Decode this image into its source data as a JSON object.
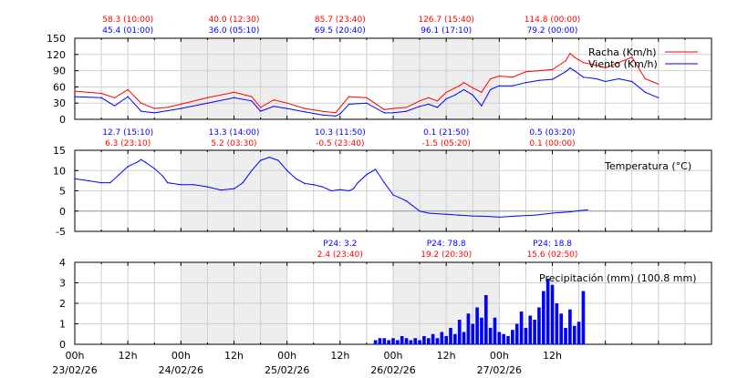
{
  "chart_data": [
    {
      "type": "line",
      "ylim": [
        0,
        150
      ],
      "yticks": [
        0,
        30,
        60,
        90,
        120,
        150
      ],
      "x_unit": "hours since 23/02/26 00h",
      "series": [
        {
          "name": "Racha (Km/h)",
          "color": "#ff0000",
          "x": [
            0,
            6,
            9,
            12,
            15,
            18,
            21,
            24,
            30,
            36,
            40,
            42,
            45,
            48,
            52,
            56,
            59,
            60,
            62,
            66,
            70,
            72,
            75,
            78,
            80,
            82,
            84,
            86,
            87,
            88,
            90,
            92,
            94,
            96,
            99,
            102,
            105,
            108,
            111,
            112,
            113,
            115,
            118,
            120,
            123,
            126,
            129,
            132
          ],
          "y": [
            52,
            48,
            40,
            55,
            30,
            20,
            22,
            28,
            40,
            50,
            42,
            22,
            36,
            30,
            20,
            15,
            12,
            22,
            42,
            40,
            18,
            20,
            22,
            34,
            40,
            34,
            50,
            58,
            62,
            68,
            58,
            50,
            75,
            80,
            78,
            88,
            90,
            92,
            108,
            122,
            115,
            105,
            100,
            95,
            105,
            115,
            75,
            65
          ]
        },
        {
          "name": "Viento (Km/h)",
          "color": "#0000ff",
          "x": [
            0,
            6,
            9,
            12,
            15,
            18,
            21,
            24,
            30,
            36,
            40,
            42,
            45,
            48,
            52,
            56,
            59,
            60,
            62,
            66,
            70,
            72,
            75,
            78,
            80,
            82,
            84,
            86,
            87,
            88,
            90,
            92,
            94,
            96,
            99,
            102,
            105,
            108,
            111,
            112,
            113,
            115,
            118,
            120,
            123,
            126,
            129,
            132
          ],
          "y": [
            42,
            40,
            25,
            42,
            15,
            12,
            16,
            20,
            30,
            40,
            34,
            15,
            24,
            20,
            14,
            8,
            6,
            10,
            28,
            30,
            12,
            12,
            15,
            24,
            28,
            22,
            38,
            45,
            50,
            55,
            45,
            25,
            55,
            62,
            62,
            68,
            72,
            74,
            88,
            95,
            90,
            78,
            75,
            70,
            75,
            70,
            50,
            40
          ]
        }
      ],
      "annotations": [
        {
          "x_h": 12,
          "top": "58.3 (10:00)",
          "bottom": "45.4 (01:00)",
          "top_color": "#ff0000",
          "bottom_color": "#0000ff"
        },
        {
          "x_h": 36,
          "top": "40.0 (12:30)",
          "bottom": "36.0 (05:10)",
          "top_color": "#ff0000",
          "bottom_color": "#0000ff"
        },
        {
          "x_h": 60,
          "top": "85.7 (23:40)",
          "bottom": "69.5 (20:40)",
          "top_color": "#ff0000",
          "bottom_color": "#0000ff"
        },
        {
          "x_h": 84,
          "top": "126.7 (15:40)",
          "bottom": "96.1 (17:10)",
          "top_color": "#ff0000",
          "bottom_color": "#0000ff"
        },
        {
          "x_h": 108,
          "top": "114.8 (00:00)",
          "bottom": "79.2 (00:00)",
          "top_color": "#ff0000",
          "bottom_color": "#0000ff"
        }
      ]
    },
    {
      "type": "line",
      "ylim": [
        -5,
        15
      ],
      "yticks": [
        -5,
        0,
        5,
        10,
        15
      ],
      "series": [
        {
          "name": "Temperatura (°C)",
          "color": "#0000ff",
          "x": [
            0,
            3,
            6,
            8,
            10,
            12,
            14,
            15,
            16,
            18,
            20,
            21,
            24,
            27,
            30,
            33,
            36,
            38,
            40,
            42,
            44,
            46,
            48,
            50,
            52,
            54,
            56,
            58,
            60,
            62,
            63,
            64,
            66,
            68,
            70,
            72,
            75,
            78,
            80,
            84,
            87,
            90,
            93,
            96,
            100,
            104,
            108,
            112,
            114,
            116
          ],
          "y": [
            8,
            7.5,
            7,
            7,
            9,
            11,
            12,
            12.7,
            12,
            10.5,
            8.5,
            7,
            6.5,
            6.5,
            6,
            5.2,
            5.5,
            7,
            10,
            12.5,
            13.3,
            12.5,
            10,
            8,
            6.8,
            6.5,
            6,
            5,
            5.3,
            5,
            5.5,
            7,
            9,
            10.3,
            7,
            4,
            2.5,
            0,
            -0.5,
            -0.8,
            -1,
            -1.2,
            -1.3,
            -1.5,
            -1.2,
            -1,
            -0.5,
            -0.2,
            0.1,
            0.3
          ]
        }
      ],
      "annotations": [
        {
          "x_h": 12,
          "top": "12.7 (15:10)",
          "bottom": "6.3 (23:10)",
          "top_color": "#0000ff",
          "bottom_color": "#ff0000"
        },
        {
          "x_h": 36,
          "top": "13.3 (14:00)",
          "bottom": "5.2 (03:30)",
          "top_color": "#0000ff",
          "bottom_color": "#ff0000"
        },
        {
          "x_h": 60,
          "top": "10.3 (11:50)",
          "bottom": "-0.5 (23:40)",
          "top_color": "#0000ff",
          "bottom_color": "#ff0000"
        },
        {
          "x_h": 84,
          "top": "0.1 (21:50)",
          "bottom": "-1.5 (05:20)",
          "top_color": "#0000ff",
          "bottom_color": "#ff0000"
        },
        {
          "x_h": 108,
          "top": "0.5 (03:20)",
          "bottom": "0.1 (00:00)",
          "top_color": "#0000ff",
          "bottom_color": "#ff0000"
        }
      ]
    },
    {
      "type": "bar",
      "ylim": [
        0,
        4
      ],
      "yticks": [
        0,
        1,
        2,
        3,
        4
      ],
      "series": [
        {
          "name": "Precipitación (mm) (100.8 mm)",
          "color": "#0000ff",
          "x": [
            68,
            69,
            70,
            71,
            72,
            73,
            74,
            75,
            76,
            77,
            78,
            79,
            80,
            81,
            82,
            83,
            84,
            85,
            86,
            87,
            88,
            89,
            90,
            91,
            92,
            93,
            94,
            95,
            96,
            97,
            98,
            99,
            100,
            101,
            102,
            103,
            104,
            105,
            106,
            107,
            108,
            109,
            110,
            111,
            112,
            113,
            114,
            115
          ],
          "y": [
            0.2,
            0.3,
            0.3,
            0.2,
            0.3,
            0.2,
            0.4,
            0.3,
            0.2,
            0.3,
            0.2,
            0.4,
            0.3,
            0.5,
            0.3,
            0.6,
            0.4,
            0.8,
            0.5,
            1.2,
            0.6,
            1.5,
            1.0,
            1.8,
            1.3,
            2.4,
            0.8,
            1.3,
            0.6,
            0.5,
            0.4,
            0.7,
            1.0,
            1.6,
            0.8,
            1.4,
            1.2,
            1.8,
            2.6,
            3.2,
            2.9,
            2.0,
            1.5,
            0.8,
            1.7,
            0.9,
            1.1,
            2.6
          ]
        }
      ],
      "annotations": [
        {
          "x_h": 60,
          "top": "P24: 3.2",
          "bottom": "2.4 (23:40)",
          "top_color": "#0000ff",
          "bottom_color": "#ff0000"
        },
        {
          "x_h": 84,
          "top": "P24: 78.8",
          "bottom": "19.2 (20:30)",
          "top_color": "#0000ff",
          "bottom_color": "#ff0000"
        },
        {
          "x_h": 108,
          "top": "P24: 18.8",
          "bottom": "15.6 (02:50)",
          "top_color": "#0000ff",
          "bottom_color": "#ff0000"
        }
      ]
    }
  ],
  "x_axis": {
    "hour_labels": [
      "00h",
      "12h",
      "00h",
      "12h",
      "00h",
      "12h",
      "00h",
      "12h",
      "00h",
      "12h"
    ],
    "date_labels": [
      "23/02/26",
      "24/02/26",
      "25/02/26",
      "26/02/26",
      "27/02/26"
    ]
  },
  "shaded_days": [
    "24/02/26",
    "26/02/26"
  ],
  "grid": true
}
